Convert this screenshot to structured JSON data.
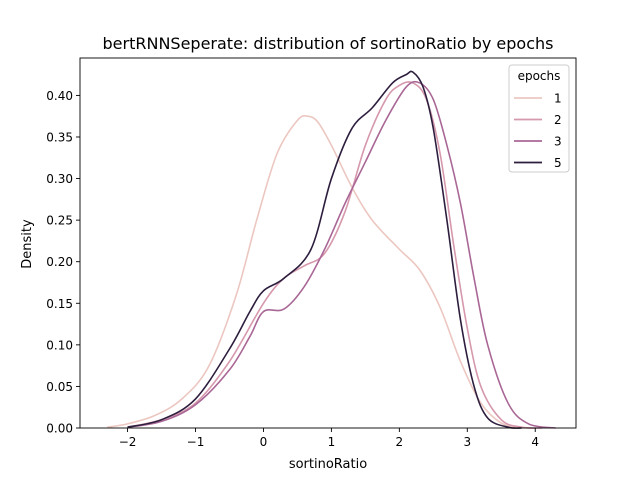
{
  "chart_data": {
    "type": "line",
    "title": "bertRNNSeperate: distribution of sortinoRatio by epochs",
    "xlabel": "sortinoRatio",
    "ylabel": "Density",
    "xlim": [
      -2.7,
      4.6
    ],
    "ylim": [
      0.0,
      0.445
    ],
    "xticks": [
      -2,
      -1,
      0,
      1,
      2,
      3,
      4
    ],
    "xtick_labels": [
      "−2",
      "−1",
      "0",
      "1",
      "2",
      "3",
      "4"
    ],
    "yticks": [
      0.0,
      0.05,
      0.1,
      0.15,
      0.2,
      0.25,
      0.3,
      0.35,
      0.4
    ],
    "ytick_labels": [
      "0.00",
      "0.05",
      "0.10",
      "0.15",
      "0.20",
      "0.25",
      "0.30",
      "0.35",
      "0.40"
    ],
    "grid": false,
    "legend": {
      "title": "epochs",
      "placement": "top-right"
    },
    "series": [
      {
        "name": "1",
        "color": "#ecc7c1",
        "x": [
          -2.3,
          -2.0,
          -1.6,
          -1.2,
          -0.8,
          -0.4,
          -0.1,
          0.2,
          0.5,
          0.65,
          0.8,
          1.0,
          1.3,
          1.6,
          2.0,
          2.3,
          2.6,
          2.9,
          3.2,
          3.5,
          3.8
        ],
        "y": [
          0.001,
          0.005,
          0.015,
          0.035,
          0.075,
          0.16,
          0.25,
          0.33,
          0.37,
          0.375,
          0.368,
          0.34,
          0.29,
          0.25,
          0.215,
          0.19,
          0.145,
          0.08,
          0.03,
          0.006,
          0.0
        ]
      },
      {
        "name": "2",
        "color": "#d698ac",
        "x": [
          -2.0,
          -1.5,
          -1.0,
          -0.5,
          0.0,
          0.3,
          0.6,
          0.9,
          1.2,
          1.5,
          1.8,
          2.0,
          2.2,
          2.4,
          2.6,
          2.8,
          3.0,
          3.2,
          3.5,
          3.8,
          4.1
        ],
        "y": [
          0.001,
          0.01,
          0.03,
          0.08,
          0.15,
          0.18,
          0.195,
          0.21,
          0.26,
          0.34,
          0.395,
          0.412,
          0.415,
          0.395,
          0.33,
          0.22,
          0.12,
          0.05,
          0.01,
          0.001,
          0.0
        ]
      },
      {
        "name": "3",
        "color": "#a96796",
        "x": [
          -2.0,
          -1.5,
          -1.0,
          -0.5,
          -0.2,
          0.0,
          0.3,
          0.6,
          0.9,
          1.2,
          1.5,
          1.8,
          2.1,
          2.3,
          2.5,
          2.7,
          2.9,
          3.1,
          3.3,
          3.6,
          3.9,
          4.3
        ],
        "y": [
          0.001,
          0.008,
          0.028,
          0.07,
          0.11,
          0.14,
          0.143,
          0.17,
          0.215,
          0.27,
          0.32,
          0.37,
          0.41,
          0.415,
          0.395,
          0.34,
          0.27,
          0.18,
          0.1,
          0.03,
          0.005,
          0.0
        ]
      },
      {
        "name": "5",
        "color": "#2d1e3e",
        "x": [
          -2.0,
          -1.5,
          -1.0,
          -0.5,
          -0.2,
          0.0,
          0.3,
          0.7,
          1.0,
          1.3,
          1.6,
          1.9,
          2.1,
          2.2,
          2.35,
          2.5,
          2.7,
          2.9,
          3.1,
          3.3,
          3.6,
          3.8
        ],
        "y": [
          0.001,
          0.01,
          0.035,
          0.095,
          0.14,
          0.165,
          0.18,
          0.215,
          0.3,
          0.36,
          0.385,
          0.415,
          0.425,
          0.428,
          0.41,
          0.36,
          0.25,
          0.13,
          0.05,
          0.012,
          0.001,
          0.0
        ]
      }
    ]
  }
}
